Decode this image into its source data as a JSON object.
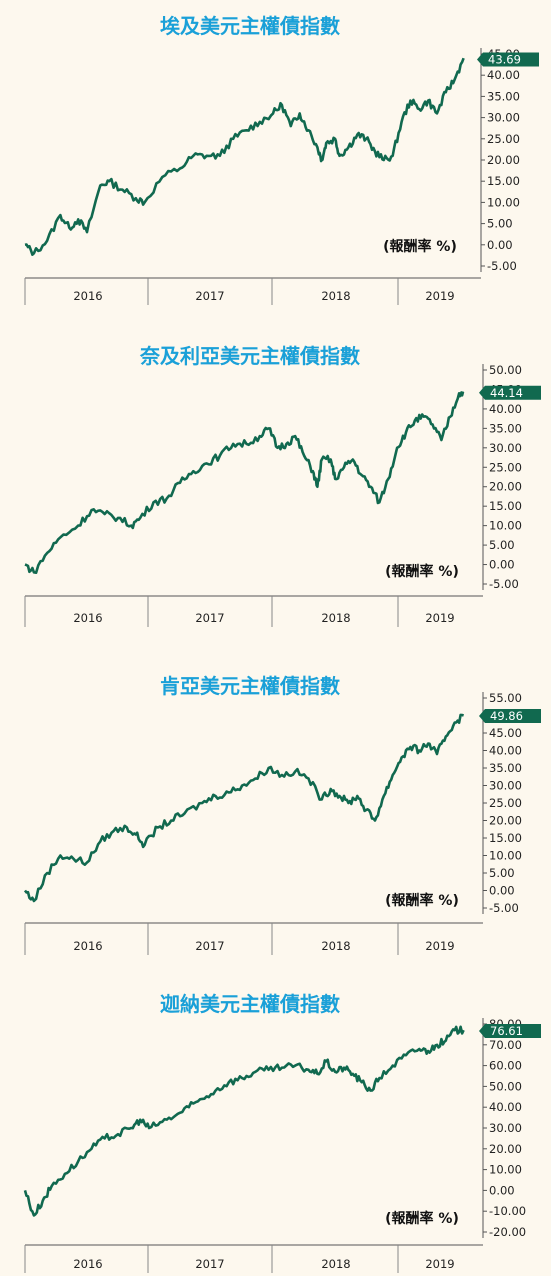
{
  "colors": {
    "line": "#11694f",
    "title": "#1aa0d8",
    "label_bg": "#11694f",
    "background": "#fdf8ee"
  },
  "chart_data": [
    {
      "type": "line",
      "title": "埃及美元主權債指數",
      "unit_label": "(報酬率 %)",
      "x_labels": [
        "2016",
        "2017",
        "2018",
        "2019"
      ],
      "y_ticks": [
        "45.00",
        "40.00",
        "35.00",
        "30.00",
        "25.00",
        "20.00",
        "15.00",
        "10.00",
        "5.00",
        "0.00",
        "-5.00"
      ],
      "ylim": [
        -5,
        45
      ],
      "last_value": 43.69,
      "last_value_label": "43.69",
      "grid": false,
      "series": [
        {
          "points": [
            [
              0,
              0
            ],
            [
              0.02,
              -2
            ],
            [
              0.05,
              1
            ],
            [
              0.08,
              7
            ],
            [
              0.1,
              4
            ],
            [
              0.12,
              6
            ],
            [
              0.14,
              3
            ],
            [
              0.17,
              14
            ],
            [
              0.19,
              15
            ],
            [
              0.22,
              13
            ],
            [
              0.25,
              11
            ],
            [
              0.27,
              10
            ],
            [
              0.31,
              16
            ],
            [
              0.35,
              18
            ],
            [
              0.38,
              21
            ],
            [
              0.41,
              21
            ],
            [
              0.44,
              21
            ],
            [
              0.47,
              25
            ],
            [
              0.5,
              27
            ],
            [
              0.53,
              29
            ],
            [
              0.56,
              31
            ],
            [
              0.58,
              33
            ],
            [
              0.6,
              28
            ],
            [
              0.62,
              31
            ],
            [
              0.64,
              27
            ],
            [
              0.66,
              23
            ],
            [
              0.67,
              20
            ],
            [
              0.68,
              24
            ],
            [
              0.7,
              25
            ],
            [
              0.71,
              21
            ],
            [
              0.73,
              23
            ],
            [
              0.75,
              26
            ],
            [
              0.77,
              25
            ],
            [
              0.79,
              22
            ],
            [
              0.81,
              20
            ],
            [
              0.83,
              21
            ],
            [
              0.85,
              29
            ],
            [
              0.87,
              34
            ],
            [
              0.89,
              32
            ],
            [
              0.91,
              34
            ],
            [
              0.93,
              31
            ],
            [
              0.95,
              36
            ],
            [
              0.97,
              39
            ],
            [
              0.99,
              44
            ]
          ]
        }
      ]
    },
    {
      "type": "line",
      "title": "奈及利亞美元主權債指數",
      "unit_label": "(報酬率 %)",
      "x_labels": [
        "2016",
        "2017",
        "2018",
        "2019"
      ],
      "y_ticks": [
        "50.00",
        "45.00",
        "40.00",
        "35.00",
        "30.00",
        "25.00",
        "20.00",
        "15.00",
        "10.00",
        "5.00",
        "0.00",
        "-5.00"
      ],
      "ylim": [
        -5,
        50
      ],
      "last_value": 44.14,
      "last_value_label": "44.14",
      "grid": false,
      "series": [
        {
          "points": [
            [
              0,
              0
            ],
            [
              0.02,
              -2
            ],
            [
              0.05,
              3
            ],
            [
              0.08,
              7
            ],
            [
              0.12,
              10
            ],
            [
              0.15,
              14
            ],
            [
              0.18,
              13
            ],
            [
              0.21,
              12
            ],
            [
              0.24,
              10
            ],
            [
              0.26,
              12
            ],
            [
              0.29,
              16
            ],
            [
              0.32,
              17
            ],
            [
              0.35,
              21
            ],
            [
              0.38,
              24
            ],
            [
              0.41,
              26
            ],
            [
              0.44,
              28
            ],
            [
              0.47,
              31
            ],
            [
              0.5,
              31
            ],
            [
              0.53,
              33
            ],
            [
              0.55,
              35
            ],
            [
              0.57,
              30
            ],
            [
              0.59,
              31
            ],
            [
              0.61,
              33
            ],
            [
              0.63,
              28
            ],
            [
              0.65,
              24
            ],
            [
              0.66,
              20
            ],
            [
              0.67,
              27
            ],
            [
              0.69,
              27
            ],
            [
              0.7,
              22
            ],
            [
              0.72,
              25
            ],
            [
              0.74,
              27
            ],
            [
              0.76,
              23
            ],
            [
              0.78,
              20
            ],
            [
              0.8,
              16
            ],
            [
              0.82,
              22
            ],
            [
              0.84,
              30
            ],
            [
              0.86,
              34
            ],
            [
              0.88,
              37
            ],
            [
              0.9,
              38
            ],
            [
              0.92,
              36
            ],
            [
              0.94,
              32
            ],
            [
              0.96,
              38
            ],
            [
              0.98,
              44
            ],
            [
              0.99,
              44
            ]
          ]
        }
      ]
    },
    {
      "type": "line",
      "title": "肯亞美元主權債指數",
      "unit_label": "(報酬率 %)",
      "x_labels": [
        "2016",
        "2017",
        "2018",
        "2019"
      ],
      "y_ticks": [
        "55.00",
        "50.00",
        "45.00",
        "40.00",
        "35.00",
        "30.00",
        "25.00",
        "20.00",
        "15.00",
        "10.00",
        "5.00",
        "0.00",
        "-5.00"
      ],
      "ylim": [
        -5,
        55
      ],
      "last_value": 49.86,
      "last_value_label": "49.86",
      "grid": false,
      "series": [
        {
          "points": [
            [
              0,
              0
            ],
            [
              0.02,
              -3
            ],
            [
              0.05,
              5
            ],
            [
              0.08,
              10
            ],
            [
              0.11,
              9
            ],
            [
              0.14,
              8
            ],
            [
              0.17,
              14
            ],
            [
              0.2,
              17
            ],
            [
              0.23,
              18
            ],
            [
              0.25,
              16
            ],
            [
              0.27,
              13
            ],
            [
              0.3,
              18
            ],
            [
              0.33,
              20
            ],
            [
              0.36,
              22
            ],
            [
              0.4,
              25
            ],
            [
              0.43,
              27
            ],
            [
              0.46,
              28
            ],
            [
              0.49,
              30
            ],
            [
              0.52,
              32
            ],
            [
              0.55,
              35
            ],
            [
              0.58,
              33
            ],
            [
              0.61,
              34
            ],
            [
              0.64,
              32
            ],
            [
              0.67,
              26
            ],
            [
              0.69,
              29
            ],
            [
              0.71,
              27
            ],
            [
              0.73,
              25
            ],
            [
              0.75,
              27
            ],
            [
              0.77,
              23
            ],
            [
              0.79,
              20
            ],
            [
              0.81,
              27
            ],
            [
              0.83,
              33
            ],
            [
              0.85,
              38
            ],
            [
              0.87,
              41
            ],
            [
              0.89,
              40
            ],
            [
              0.91,
              42
            ],
            [
              0.93,
              39
            ],
            [
              0.95,
              44
            ],
            [
              0.97,
              48
            ],
            [
              0.99,
              50
            ]
          ]
        }
      ]
    },
    {
      "type": "line",
      "title": "迦納美元主權債指數",
      "unit_label": "(報酬率 %)",
      "x_labels": [
        "2016",
        "2017",
        "2018",
        "2019"
      ],
      "y_ticks": [
        "80.00",
        "70.00",
        "60.00",
        "50.00",
        "40.00",
        "30.00",
        "20.00",
        "10.00",
        "0.00",
        "-10.00",
        "-20.00"
      ],
      "ylim": [
        -20,
        80
      ],
      "last_value": 76.61,
      "last_value_label": "76.61",
      "grid": false,
      "series": [
        {
          "points": [
            [
              0,
              0
            ],
            [
              0.02,
              -12
            ],
            [
              0.04,
              -5
            ],
            [
              0.06,
              2
            ],
            [
              0.09,
              8
            ],
            [
              0.12,
              14
            ],
            [
              0.15,
              20
            ],
            [
              0.18,
              25
            ],
            [
              0.21,
              27
            ],
            [
              0.24,
              30
            ],
            [
              0.26,
              34
            ],
            [
              0.28,
              30
            ],
            [
              0.31,
              33
            ],
            [
              0.34,
              36
            ],
            [
              0.37,
              40
            ],
            [
              0.4,
              44
            ],
            [
              0.43,
              48
            ],
            [
              0.46,
              52
            ],
            [
              0.49,
              54
            ],
            [
              0.52,
              57
            ],
            [
              0.55,
              58
            ],
            [
              0.58,
              59
            ],
            [
              0.61,
              60
            ],
            [
              0.64,
              58
            ],
            [
              0.66,
              56
            ],
            [
              0.68,
              62
            ],
            [
              0.7,
              57
            ],
            [
              0.72,
              59
            ],
            [
              0.74,
              56
            ],
            [
              0.76,
              52
            ],
            [
              0.78,
              48
            ],
            [
              0.8,
              54
            ],
            [
              0.83,
              60
            ],
            [
              0.86,
              65
            ],
            [
              0.89,
              68
            ],
            [
              0.91,
              67
            ],
            [
              0.93,
              70
            ],
            [
              0.95,
              72
            ],
            [
              0.97,
              77
            ],
            [
              0.99,
              77
            ]
          ]
        }
      ]
    }
  ]
}
